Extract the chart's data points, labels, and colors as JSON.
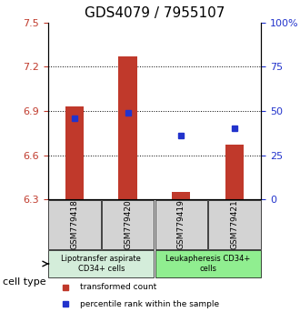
{
  "title": "GDS4079 / 7955107",
  "samples": [
    "GSM779418",
    "GSM779420",
    "GSM779419",
    "GSM779421"
  ],
  "transformed_counts": [
    6.93,
    7.27,
    6.35,
    6.67
  ],
  "percentile_ranks": [
    46,
    49,
    36,
    40
  ],
  "ylim_left": [
    6.3,
    7.5
  ],
  "ylim_right": [
    0,
    100
  ],
  "yticks_left": [
    6.3,
    6.6,
    6.9,
    7.2,
    7.5
  ],
  "yticks_right": [
    0,
    25,
    50,
    75,
    100
  ],
  "ytick_labels_right": [
    "0",
    "25",
    "50",
    "75",
    "100%"
  ],
  "bar_color": "#c0392b",
  "dot_color": "#2233cc",
  "grid_color": "#000000",
  "cell_type_groups": [
    {
      "label": "Lipotransfer aspirate\nCD34+ cells",
      "start": 0,
      "end": 2,
      "color": "#d4edda"
    },
    {
      "label": "Leukapheresis CD34+\ncells",
      "start": 2,
      "end": 4,
      "color": "#90ee90"
    }
  ],
  "cell_type_label": "cell type",
  "legend_items": [
    {
      "color": "#c0392b",
      "label": "transformed count"
    },
    {
      "color": "#2233cc",
      "label": "percentile rank within the sample"
    }
  ],
  "bar_width": 0.35,
  "base_value": 6.3,
  "xlabel_fontsize": 7,
  "title_fontsize": 11
}
